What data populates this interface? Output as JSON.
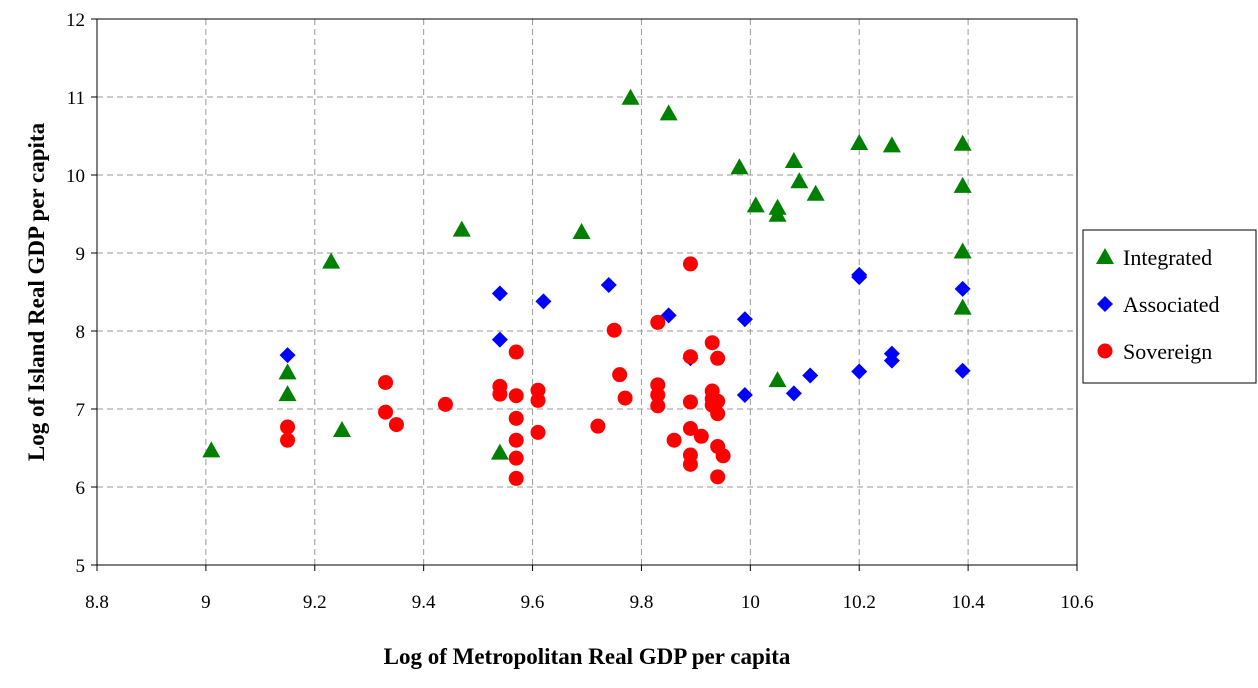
{
  "chart_data": {
    "type": "scatter",
    "title": "",
    "xlabel": "Log of Metropolitan Real GDP per capita",
    "ylabel": "Log of Island Real GDP per capita",
    "xlim": [
      8.8,
      10.6
    ],
    "ylim": [
      5,
      12
    ],
    "xticks": [
      "8.8",
      "9",
      "9.2",
      "9.4",
      "9.6",
      "9.8",
      "10",
      "10.2",
      "10.4",
      "10.6"
    ],
    "yticks": [
      "5",
      "6",
      "7",
      "8",
      "9",
      "10",
      "11",
      "12"
    ],
    "grid": true,
    "legend_position": "right",
    "series": [
      {
        "name": "Integrated",
        "marker": "triangle",
        "color": "#008000",
        "points": [
          [
            9.01,
            6.47
          ],
          [
            9.15,
            7.47
          ],
          [
            9.15,
            7.19
          ],
          [
            9.23,
            8.89
          ],
          [
            9.25,
            6.73
          ],
          [
            9.47,
            9.3
          ],
          [
            9.54,
            6.44
          ],
          [
            9.69,
            9.27
          ],
          [
            9.78,
            10.99
          ],
          [
            9.85,
            10.79
          ],
          [
            9.98,
            10.1
          ],
          [
            10.01,
            9.61
          ],
          [
            10.05,
            9.58
          ],
          [
            10.05,
            9.49
          ],
          [
            10.05,
            7.37
          ],
          [
            10.08,
            10.18
          ],
          [
            10.09,
            9.92
          ],
          [
            10.12,
            9.76
          ],
          [
            10.2,
            10.41
          ],
          [
            10.26,
            10.38
          ],
          [
            10.39,
            10.4
          ],
          [
            10.39,
            9.86
          ],
          [
            10.39,
            9.02
          ],
          [
            10.39,
            8.3
          ]
        ]
      },
      {
        "name": "Associated",
        "marker": "diamond",
        "color": "#0000ff",
        "points": [
          [
            9.15,
            7.69
          ],
          [
            9.54,
            8.48
          ],
          [
            9.54,
            7.89
          ],
          [
            9.62,
            8.38
          ],
          [
            9.74,
            8.59
          ],
          [
            9.85,
            8.2
          ],
          [
            9.89,
            7.65
          ],
          [
            9.99,
            8.15
          ],
          [
            9.99,
            7.18
          ],
          [
            10.08,
            7.2
          ],
          [
            10.11,
            7.43
          ],
          [
            10.2,
            8.72
          ],
          [
            10.2,
            8.69
          ],
          [
            10.2,
            7.48
          ],
          [
            10.26,
            7.71
          ],
          [
            10.26,
            7.62
          ],
          [
            10.39,
            8.54
          ],
          [
            10.39,
            7.49
          ]
        ]
      },
      {
        "name": "Sovereign",
        "marker": "circle",
        "color": "#ff0000",
        "points": [
          [
            9.15,
            6.77
          ],
          [
            9.15,
            6.6
          ],
          [
            9.33,
            7.34
          ],
          [
            9.33,
            6.96
          ],
          [
            9.35,
            6.8
          ],
          [
            9.44,
            7.06
          ],
          [
            9.54,
            7.29
          ],
          [
            9.54,
            7.19
          ],
          [
            9.57,
            7.73
          ],
          [
            9.57,
            7.17
          ],
          [
            9.57,
            6.88
          ],
          [
            9.57,
            6.6
          ],
          [
            9.57,
            6.37
          ],
          [
            9.57,
            6.11
          ],
          [
            9.61,
            7.24
          ],
          [
            9.61,
            7.11
          ],
          [
            9.61,
            6.7
          ],
          [
            9.72,
            6.78
          ],
          [
            9.75,
            8.01
          ],
          [
            9.76,
            7.44
          ],
          [
            9.77,
            7.14
          ],
          [
            9.83,
            8.11
          ],
          [
            9.83,
            7.31
          ],
          [
            9.83,
            7.18
          ],
          [
            9.83,
            7.04
          ],
          [
            9.86,
            6.6
          ],
          [
            9.89,
            8.86
          ],
          [
            9.89,
            7.67
          ],
          [
            9.89,
            7.09
          ],
          [
            9.89,
            6.75
          ],
          [
            9.89,
            6.41
          ],
          [
            9.89,
            6.29
          ],
          [
            9.91,
            6.65
          ],
          [
            9.93,
            7.85
          ],
          [
            9.93,
            7.23
          ],
          [
            9.93,
            7.13
          ],
          [
            9.93,
            7.05
          ],
          [
            9.94,
            7.65
          ],
          [
            9.94,
            7.1
          ],
          [
            9.94,
            6.94
          ],
          [
            9.94,
            6.52
          ],
          [
            9.94,
            6.13
          ],
          [
            9.95,
            6.4
          ]
        ]
      }
    ]
  }
}
